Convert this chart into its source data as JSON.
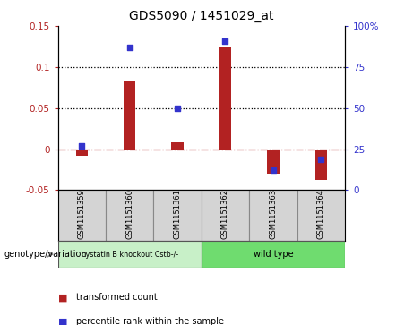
{
  "title": "GDS5090 / 1451029_at",
  "samples": [
    "GSM1151359",
    "GSM1151360",
    "GSM1151361",
    "GSM1151362",
    "GSM1151363",
    "GSM1151364"
  ],
  "bar_values": [
    -0.008,
    0.083,
    0.008,
    0.125,
    -0.03,
    -0.038
  ],
  "scatter_percentile": [
    27,
    87,
    50,
    91,
    12,
    19
  ],
  "ylim_left": [
    -0.05,
    0.15
  ],
  "ylim_right": [
    0,
    100
  ],
  "bar_color": "#B22222",
  "scatter_color": "#3333CC",
  "group1_label": "cystatin B knockout Cstb-/-",
  "group2_label": "wild type",
  "group1_color": "#c8f0c8",
  "group2_color": "#6fdc6f",
  "sample_box_color": "#d4d4d4",
  "xlabel_label": "genotype/variation",
  "legend_bar": "transformed count",
  "legend_scatter": "percentile rank within the sample",
  "left_yticks": [
    -0.05,
    0.0,
    0.05,
    0.1,
    0.15
  ],
  "left_yticklabels": [
    "-0.05",
    "0",
    "0.05",
    "0.1",
    "0.15"
  ],
  "right_yticks": [
    0,
    25,
    50,
    75,
    100
  ],
  "right_yticklabels": [
    "0",
    "25",
    "50",
    "75",
    "100%"
  ],
  "hlines": [
    0.05,
    0.1
  ],
  "bar_width": 0.25
}
